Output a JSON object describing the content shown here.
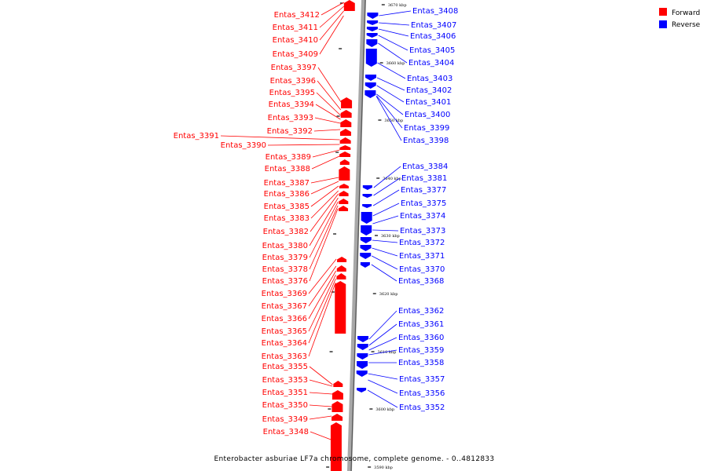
{
  "caption": "Enterobacter asburiae LF7a chromosome, complete genome. - 0..4812833",
  "legend": [
    {
      "label": "Forward",
      "color": "#ff0000"
    },
    {
      "label": "Reverse",
      "color": "#0000ff"
    }
  ],
  "colors": {
    "forward": "#ff0000",
    "reverse": "#0000ff",
    "backbone": "#999999"
  },
  "scale_ticks": [
    "3670 kbp",
    "3660 kbp",
    "3650 kbp",
    "3640 kbp",
    "3630 kbp",
    "3620 kbp",
    "3610 kbp",
    "3600 kbp",
    "3590 kbp"
  ],
  "forward_genes": [
    {
      "label": "Entas_3412"
    },
    {
      "label": "Entas_3411"
    },
    {
      "label": "Entas_3410"
    },
    {
      "label": "Entas_3409"
    },
    {
      "label": "Entas_3397"
    },
    {
      "label": "Entas_3396"
    },
    {
      "label": "Entas_3395"
    },
    {
      "label": "Entas_3394"
    },
    {
      "label": "Entas_3393"
    },
    {
      "label": "Entas_3392"
    },
    {
      "label": "Entas_3391"
    },
    {
      "label": "Entas_3390"
    },
    {
      "label": "Entas_3389"
    },
    {
      "label": "Entas_3388"
    },
    {
      "label": "Entas_3387"
    },
    {
      "label": "Entas_3386"
    },
    {
      "label": "Entas_3385"
    },
    {
      "label": "Entas_3383"
    },
    {
      "label": "Entas_3382"
    },
    {
      "label": "Entas_3380"
    },
    {
      "label": "Entas_3379"
    },
    {
      "label": "Entas_3378"
    },
    {
      "label": "Entas_3376"
    },
    {
      "label": "Entas_3369"
    },
    {
      "label": "Entas_3367"
    },
    {
      "label": "Entas_3366"
    },
    {
      "label": "Entas_3365"
    },
    {
      "label": "Entas_3364"
    },
    {
      "label": "Entas_3363"
    },
    {
      "label": "Entas_3355"
    },
    {
      "label": "Entas_3353"
    },
    {
      "label": "Entas_3351"
    },
    {
      "label": "Entas_3350"
    },
    {
      "label": "Entas_3349"
    },
    {
      "label": "Entas_3348"
    }
  ],
  "reverse_genes": [
    {
      "label": "Entas_3408"
    },
    {
      "label": "Entas_3407"
    },
    {
      "label": "Entas_3406"
    },
    {
      "label": "Entas_3405"
    },
    {
      "label": "Entas_3404"
    },
    {
      "label": "Entas_3403"
    },
    {
      "label": "Entas_3402"
    },
    {
      "label": "Entas_3401"
    },
    {
      "label": "Entas_3400"
    },
    {
      "label": "Entas_3399"
    },
    {
      "label": "Entas_3398"
    },
    {
      "label": "Entas_3384"
    },
    {
      "label": "Entas_3381"
    },
    {
      "label": "Entas_3377"
    },
    {
      "label": "Entas_3375"
    },
    {
      "label": "Entas_3374"
    },
    {
      "label": "Entas_3373"
    },
    {
      "label": "Entas_3372"
    },
    {
      "label": "Entas_3371"
    },
    {
      "label": "Entas_3370"
    },
    {
      "label": "Entas_3368"
    },
    {
      "label": "Entas_3362"
    },
    {
      "label": "Entas_3361"
    },
    {
      "label": "Entas_3360"
    },
    {
      "label": "Entas_3359"
    },
    {
      "label": "Entas_3358"
    },
    {
      "label": "Entas_3357"
    },
    {
      "label": "Entas_3356"
    },
    {
      "label": "Entas_3352"
    }
  ]
}
